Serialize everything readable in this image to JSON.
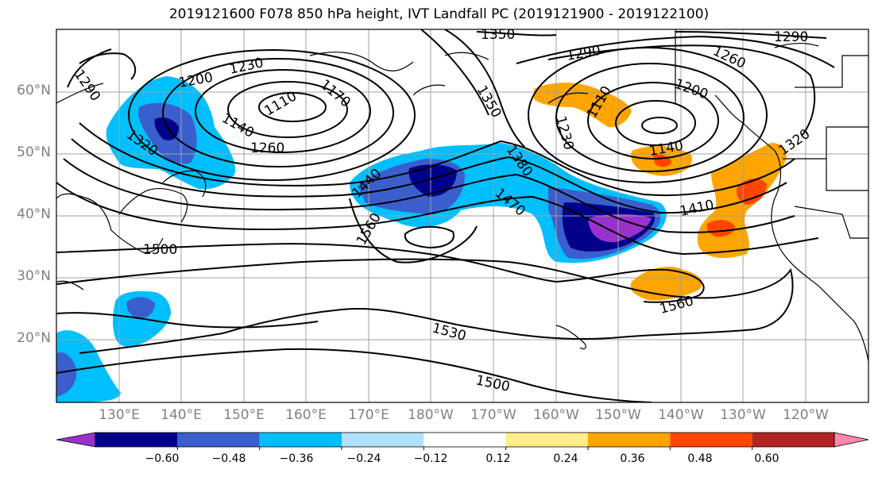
{
  "title": "2019121600 F078 850 hPa height, IVT Landfall PC (2019121900 - 2019122100)",
  "lat_labels": [
    "60°N",
    "50°N",
    "40°N",
    "30°N",
    "20°N"
  ],
  "lon_labels": [
    "130°E",
    "140°E",
    "150°E",
    "160°E",
    "170°E",
    "180°W",
    "170°W",
    "160°W",
    "150°W",
    "140°W",
    "130°W",
    "120°W"
  ],
  "contour_labels": [
    "1350",
    "1290",
    "1290",
    "1260",
    "1230",
    "1200",
    "1200",
    "1170",
    "1140",
    "1110",
    "1290",
    "1320",
    "1260",
    "1350",
    "1380",
    "1230",
    "1140",
    "1320",
    "1440",
    "1470",
    "1410",
    "1560",
    "1500",
    "1560",
    "1530",
    "1500",
    "1110"
  ],
  "colorbar": {
    "ticks": [
      "−0.60",
      "−0.48",
      "−0.36",
      "−0.24",
      "−0.12",
      "0.12",
      "0.24",
      "0.36",
      "0.48",
      "0.60"
    ],
    "colors": [
      "#9932cc",
      "#00008b",
      "#3a5fcd",
      "#00bfff",
      "#b0e2ff",
      "#ffffff",
      "#ffee8a",
      "#ffa500",
      "#ff4500",
      "#b22222",
      "#ff88aa"
    ]
  }
}
